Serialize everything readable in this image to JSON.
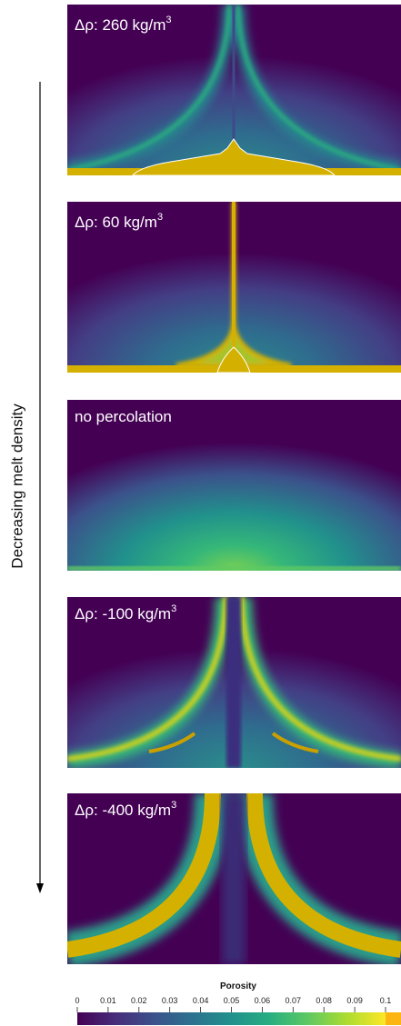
{
  "axis_label": "Decreasing melt density",
  "panels": [
    {
      "label": "Δρ: 260 kg/m",
      "sup": "3"
    },
    {
      "label": "Δρ: 60 kg/m",
      "sup": "3"
    },
    {
      "label": "no percolation"
    },
    {
      "label": "Δρ: -100 kg/m",
      "sup": "3"
    },
    {
      "label": "Δρ: -400 kg/m",
      "sup": "3"
    }
  ],
  "colorbar": {
    "title": "Porosity",
    "lim": [
      0,
      0.1
    ],
    "ticks": [
      0,
      0.01,
      0.02,
      0.03,
      0.04,
      0.05,
      0.06,
      0.07,
      0.08,
      0.09,
      0.1
    ]
  }
}
